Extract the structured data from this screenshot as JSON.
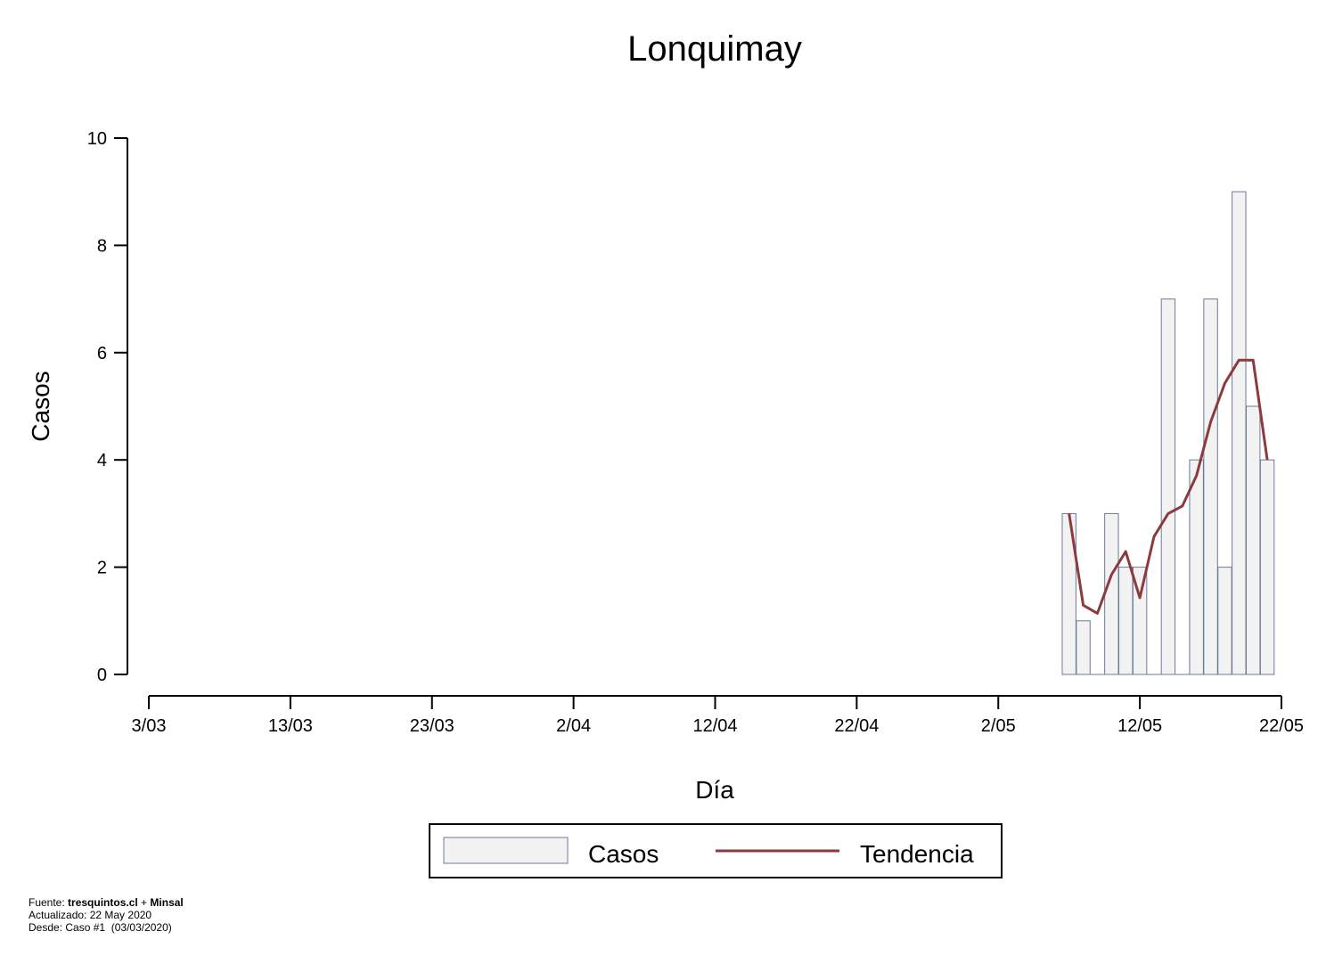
{
  "chart_data": {
    "type": "bar",
    "title": "Lonquimay",
    "xlabel": "Día",
    "ylabel": "Casos",
    "x_ticks": [
      "3/03",
      "13/03",
      "23/03",
      "2/04",
      "12/04",
      "22/04",
      "2/05",
      "12/05",
      "22/05"
    ],
    "y_ticks": [
      "0",
      "2",
      "4",
      "6",
      "8",
      "10"
    ],
    "ylim": [
      0,
      10
    ],
    "xlim": [
      "2020-03-03",
      "2020-05-22"
    ],
    "grid": false,
    "legend_position": "bottom",
    "series": [
      {
        "name": "Casos",
        "type": "bar",
        "fill": "#f2f2f2",
        "stroke": "#6b7a9c",
        "x": [
          "2020-05-07",
          "2020-05-08",
          "2020-05-09",
          "2020-05-10",
          "2020-05-11",
          "2020-05-12",
          "2020-05-13",
          "2020-05-14",
          "2020-05-15",
          "2020-05-16",
          "2020-05-17",
          "2020-05-18",
          "2020-05-19",
          "2020-05-20",
          "2020-05-21"
        ],
        "values": [
          3,
          1,
          0,
          3,
          2,
          2,
          0,
          7,
          0,
          4,
          7,
          2,
          9,
          5,
          4
        ]
      },
      {
        "name": "Tendencia",
        "type": "line",
        "color": "#8b3a3e",
        "x": [
          "2020-05-07",
          "2020-05-08",
          "2020-05-09",
          "2020-05-10",
          "2020-05-11",
          "2020-05-12",
          "2020-05-13",
          "2020-05-14",
          "2020-05-15",
          "2020-05-16",
          "2020-05-17",
          "2020-05-18",
          "2020-05-19",
          "2020-05-20",
          "2020-05-21"
        ],
        "values": [
          3.0,
          1.29,
          1.14,
          1.86,
          2.29,
          1.43,
          2.57,
          3.0,
          3.14,
          3.71,
          4.71,
          5.43,
          5.86,
          5.86,
          4.0
        ]
      }
    ]
  },
  "footer": {
    "line1_prefix": "Fuente: ",
    "line1_source1": "tresquintos.cl",
    "line1_sep": " + ",
    "line1_source2": "Minsal",
    "line2": "Actualizado: 22 May 2020",
    "line3": "Desde: Caso #1  (03/03/2020)"
  }
}
